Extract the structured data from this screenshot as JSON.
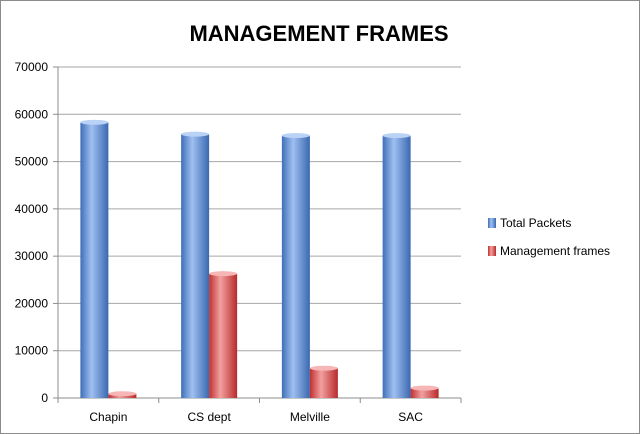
{
  "chart_data": {
    "type": "bar",
    "title": "MANAGEMENT FRAMES",
    "xlabel": "",
    "ylabel": "",
    "categories": [
      "Chapin",
      "CS dept",
      "Melville",
      "SAC"
    ],
    "series": [
      {
        "name": "Total Packets",
        "values": [
          58300,
          55800,
          55500,
          55500
        ],
        "color": "#4a7fd0"
      },
      {
        "name": "Management frames",
        "values": [
          900,
          26300,
          6300,
          2100
        ],
        "color": "#d94545"
      }
    ],
    "ylim": [
      0,
      70000
    ],
    "yticks": [
      0,
      10000,
      20000,
      30000,
      40000,
      50000,
      60000,
      70000
    ],
    "grid": true,
    "legend_position": "right"
  }
}
